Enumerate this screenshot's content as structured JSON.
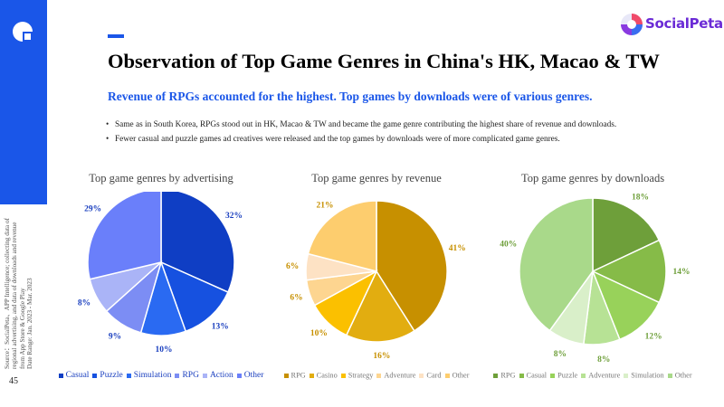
{
  "page": {
    "number": "45",
    "brand_name": "SocialPeta",
    "title": "Observation of Top Game Genres in China's HK, Macao & TW",
    "subtitle": "Revenue of RPGs accounted for the highest. Top games by downloads were of various genres.",
    "bullets": [
      "Same as in South Korea, RPGs stood out in HK, Macao & TW and became the game genre contributing the highest share of revenue and downloads.",
      "Fewer casual and puzzle games ad creatives were released and the top games by downloads were of more complicated game genres."
    ],
    "source_lines": [
      "Source：SocialPeta、APP Intelligence; collecting data of",
      "regional advertising, and data of downloads and revenue",
      "from App Store & Google Play",
      "Date Range: Jan. 2023 - Mar. 2023"
    ],
    "colors": {
      "accent": "#1a56e8",
      "brand": "#6b2bd6"
    }
  },
  "chart_data": [
    {
      "type": "pie",
      "title": "Top game genres by advertising",
      "categories": [
        "Casual",
        "Puzzle",
        "Simulation",
        "RPG",
        "Action",
        "Other"
      ],
      "values": [
        32,
        13,
        10,
        9,
        8,
        29
      ],
      "labels": [
        "32%",
        "13%",
        "10%",
        "9%",
        "8%",
        "29%"
      ],
      "colors": [
        "#0f3ec4",
        "#1651e0",
        "#2a6af2",
        "#7c8df4",
        "#aab4f7",
        "#6a7ffa"
      ],
      "label_colors": [
        "#1a3fbf",
        "#1a3fbf",
        "#1a3fbf",
        "#1a3fbf",
        "#1a3fbf",
        "#1a3fbf"
      ],
      "legend_position": "bottom"
    },
    {
      "type": "pie",
      "title": "Top game genres by revenue",
      "categories": [
        "RPG",
        "Casino",
        "Strategy",
        "Adventure",
        "Card",
        "Other"
      ],
      "values": [
        41,
        16,
        10,
        6,
        6,
        21
      ],
      "labels": [
        "41%",
        "16%",
        "10%",
        "6%",
        "6%",
        "21%"
      ],
      "colors": [
        "#c79000",
        "#e2ad10",
        "#fbc000",
        "#fdd590",
        "#fde2c4",
        "#fdcd6e"
      ],
      "label_colors": [
        "#c79000",
        "#c79000",
        "#c79000",
        "#c79000",
        "#c79000",
        "#c79000"
      ],
      "legend_position": "bottom"
    },
    {
      "type": "pie",
      "title": "Top game genres by downloads",
      "categories": [
        "RPG",
        "Casual",
        "Puzzle",
        "Adventure",
        "Simulation",
        "Other"
      ],
      "values": [
        18,
        14,
        12,
        8,
        8,
        40
      ],
      "labels": [
        "18%",
        "14%",
        "12%",
        "8%",
        "8%",
        "40%"
      ],
      "colors": [
        "#6e9f3a",
        "#86bb48",
        "#98d25a",
        "#b7e295",
        "#d9efc9",
        "#a9d98a"
      ],
      "label_colors": [
        "#6e9f3a",
        "#6e9f3a",
        "#6e9f3a",
        "#6e9f3a",
        "#6e9f3a",
        "#6e9f3a"
      ],
      "legend_position": "bottom"
    }
  ]
}
